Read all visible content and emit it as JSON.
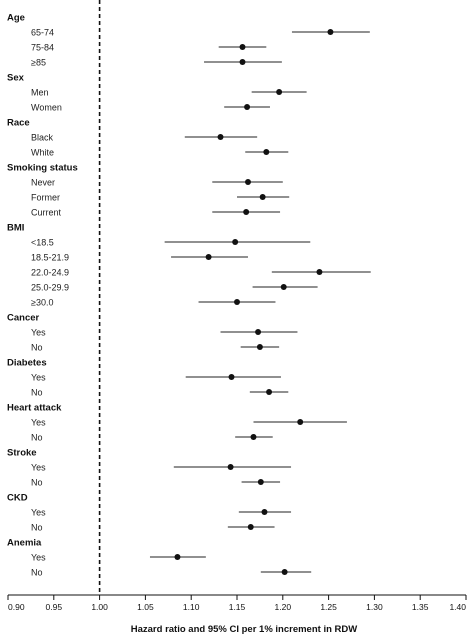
{
  "chart_data": {
    "type": "forest",
    "xlabel": "Hazard ratio and 95% CI per 1% increment in RDW",
    "xlim": [
      0.9,
      1.4
    ],
    "xticks": [
      "0.90",
      "0.95",
      "1.00",
      "1.05",
      "1.10",
      "1.15",
      "1.20",
      "1.25",
      "1.30",
      "1.35",
      "1.40"
    ],
    "reference_line": 1.0,
    "rows": [
      {
        "kind": "group",
        "label": "Age"
      },
      {
        "kind": "item",
        "label": "65-74",
        "hr": 1.252,
        "lo": 1.21,
        "hi": 1.295
      },
      {
        "kind": "item",
        "label": "75-84",
        "hr": 1.156,
        "lo": 1.13,
        "hi": 1.182
      },
      {
        "kind": "item",
        "label": "≥85",
        "hr": 1.156,
        "lo": 1.114,
        "hi": 1.199
      },
      {
        "kind": "group",
        "label": "Sex"
      },
      {
        "kind": "item",
        "label": "Men",
        "hr": 1.196,
        "lo": 1.166,
        "hi": 1.226
      },
      {
        "kind": "item",
        "label": "Women",
        "hr": 1.161,
        "lo": 1.136,
        "hi": 1.186
      },
      {
        "kind": "group",
        "label": "Race"
      },
      {
        "kind": "item",
        "label": "Black",
        "hr": 1.132,
        "lo": 1.093,
        "hi": 1.172
      },
      {
        "kind": "item",
        "label": "White",
        "hr": 1.182,
        "lo": 1.159,
        "hi": 1.206
      },
      {
        "kind": "group",
        "label": "Smoking status"
      },
      {
        "kind": "item",
        "label": "Never",
        "hr": 1.162,
        "lo": 1.123,
        "hi": 1.2
      },
      {
        "kind": "item",
        "label": "Former",
        "hr": 1.178,
        "lo": 1.15,
        "hi": 1.207
      },
      {
        "kind": "item",
        "label": "Current",
        "hr": 1.16,
        "lo": 1.123,
        "hi": 1.197
      },
      {
        "kind": "group",
        "label": "BMI"
      },
      {
        "kind": "item",
        "label": "<18.5",
        "hr": 1.148,
        "lo": 1.071,
        "hi": 1.23
      },
      {
        "kind": "item",
        "label": "18.5-21.9",
        "hr": 1.119,
        "lo": 1.078,
        "hi": 1.162
      },
      {
        "kind": "item",
        "label": "22.0-24.9",
        "hr": 1.24,
        "lo": 1.188,
        "hi": 1.296
      },
      {
        "kind": "item",
        "label": "25.0-29.9",
        "hr": 1.201,
        "lo": 1.167,
        "hi": 1.238
      },
      {
        "kind": "item",
        "label": "≥30.0",
        "hr": 1.15,
        "lo": 1.108,
        "hi": 1.192
      },
      {
        "kind": "group",
        "label": "Cancer"
      },
      {
        "kind": "item",
        "label": "Yes",
        "hr": 1.173,
        "lo": 1.132,
        "hi": 1.216
      },
      {
        "kind": "item",
        "label": "No",
        "hr": 1.175,
        "lo": 1.154,
        "hi": 1.196
      },
      {
        "kind": "group",
        "label": "Diabetes"
      },
      {
        "kind": "item",
        "label": "Yes",
        "hr": 1.144,
        "lo": 1.094,
        "hi": 1.198
      },
      {
        "kind": "item",
        "label": "No",
        "hr": 1.185,
        "lo": 1.164,
        "hi": 1.206
      },
      {
        "kind": "group",
        "label": "Heart attack"
      },
      {
        "kind": "item",
        "label": "Yes",
        "hr": 1.219,
        "lo": 1.168,
        "hi": 1.27
      },
      {
        "kind": "item",
        "label": "No",
        "hr": 1.168,
        "lo": 1.148,
        "hi": 1.189
      },
      {
        "kind": "group",
        "label": "Stroke"
      },
      {
        "kind": "item",
        "label": "Yes",
        "hr": 1.143,
        "lo": 1.081,
        "hi": 1.209
      },
      {
        "kind": "item",
        "label": "No",
        "hr": 1.176,
        "lo": 1.155,
        "hi": 1.197
      },
      {
        "kind": "group",
        "label": "CKD"
      },
      {
        "kind": "item",
        "label": "Yes",
        "hr": 1.18,
        "lo": 1.152,
        "hi": 1.209
      },
      {
        "kind": "item",
        "label": "No",
        "hr": 1.165,
        "lo": 1.14,
        "hi": 1.191
      },
      {
        "kind": "group",
        "label": "Anemia"
      },
      {
        "kind": "item",
        "label": "Yes",
        "hr": 1.085,
        "lo": 1.055,
        "hi": 1.116
      },
      {
        "kind": "item",
        "label": "No",
        "hr": 1.202,
        "lo": 1.176,
        "hi": 1.231
      }
    ]
  }
}
